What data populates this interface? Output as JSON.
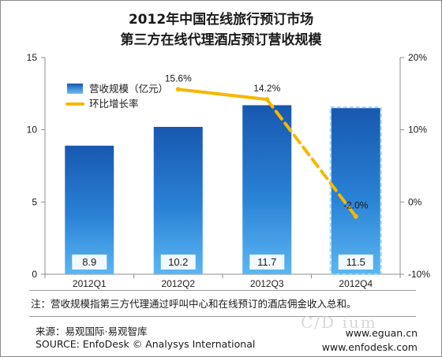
{
  "title": {
    "line1": "2012年中国在线旅行预订市场",
    "line2": "第三方在线代理酒店预订营收规模"
  },
  "note": "注：营收规模指第三方代理通过呼叫中心和在线预订的酒店佣金收入总和。",
  "source": {
    "cn": "来源：易观国际·易观智库",
    "en": "SOURCE: EnfoDesk © Analysys International"
  },
  "websites": [
    "www.eguan.cn",
    "www.enfodesk.com"
  ],
  "watermark": "C/D  ium",
  "chart_data": {
    "type": "bar",
    "categories": [
      "2012Q1",
      "2012Q2",
      "2012Q3",
      "2012Q4"
    ],
    "series": [
      {
        "name": "营收规模（亿元）",
        "type": "bar",
        "axis": "left",
        "values": [
          8.9,
          10.2,
          11.7,
          11.5
        ],
        "labels": [
          "8.9",
          "10.2",
          "11.7",
          "11.5"
        ],
        "color": "#1e6fc3"
      },
      {
        "name": "环比增长率",
        "type": "line",
        "axis": "right",
        "values": [
          null,
          15.6,
          14.2,
          -2.0
        ],
        "labels": [
          null,
          "15.6%",
          "14.2%",
          "-2.0%"
        ],
        "color": "#f5b800"
      }
    ],
    "y_left": {
      "ylim": [
        0,
        15
      ],
      "ticks": [
        0,
        5,
        10,
        15
      ],
      "tick_labels": [
        "0",
        "5",
        "10",
        "15"
      ]
    },
    "y_right": {
      "ylim": [
        -10,
        20
      ],
      "ticks": [
        -10,
        0,
        10,
        20
      ],
      "tick_labels": [
        "-10%",
        "0%",
        "10%",
        "20%"
      ]
    },
    "grid": false,
    "legend": "top-left",
    "highlight_category": "2012Q4"
  }
}
